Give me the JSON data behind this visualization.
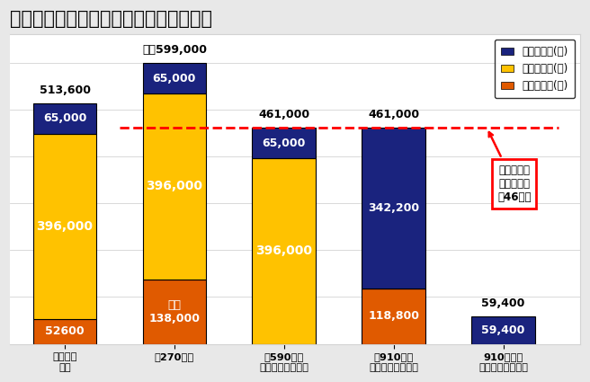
{
  "title": "世帯年収別の初年度補助上限額（東京）",
  "categories": [
    "生活保護\n世帯",
    "〜270万円",
    "〜590万円\n世帯年収のめやす",
    "〜910万円\n世帯年収のめやす",
    "910万円〜\n（多子世帯のみ）"
  ],
  "bars": {
    "orange": [
      52600,
      138000,
      0,
      118800,
      0
    ],
    "yellow": [
      396000,
      396000,
      396000,
      0,
      0
    ],
    "blue": [
      65000,
      65000,
      65000,
      342200,
      59400
    ]
  },
  "totals": [
    513600,
    599000,
    461000,
    461000,
    59400
  ],
  "total_labels": [
    "513,600",
    "最大599,000",
    "461,000",
    "461,000",
    "59,400"
  ],
  "bar_labels": {
    "orange": [
      "52600",
      "最大\n138,000",
      "",
      "118,800",
      ""
    ],
    "yellow": [
      "396,000",
      "396,000",
      "396,000",
      "",
      ""
    ],
    "blue": [
      "65,000",
      "65,000",
      "65,000",
      "342,200",
      "59,400"
    ]
  },
  "colors": {
    "blue": "#1a237e",
    "yellow": "#FFC200",
    "orange": "#E05A00"
  },
  "legend_labels": [
    "授業料補助(都)",
    "就学支援金(国)",
    "奨学給付金(国)"
  ],
  "dashed_line_y": 461000,
  "annotation_text": "東京私立高\n授業料平均\n約46万円",
  "background_color": "#e8e8e8",
  "plot_background": "#ffffff",
  "title_fontsize": 15,
  "ylim": [
    0,
    660000
  ],
  "bar_width": 0.58
}
